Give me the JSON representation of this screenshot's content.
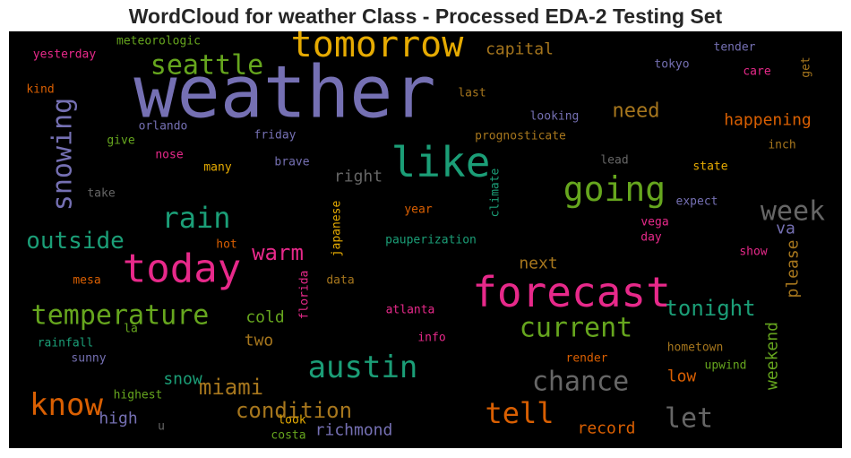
{
  "chart_data": {
    "type": "wordcloud",
    "title": "WordCloud for weather Class - Processed EDA-2 Testing Set",
    "words": [
      {
        "text": "weather",
        "color": "#7570b3"
      },
      {
        "text": "tomorrow",
        "color": "#e6ab02"
      },
      {
        "text": "seattle",
        "color": "#66a61e"
      },
      {
        "text": "capital",
        "color": "#a6761d"
      },
      {
        "text": "meteorologic",
        "color": "#66a61e"
      },
      {
        "text": "yesterday",
        "color": "#e7298a"
      },
      {
        "text": "kind",
        "color": "#d95f02"
      },
      {
        "text": "snowing",
        "color": "#7570b3"
      },
      {
        "text": "like",
        "color": "#1b9e77"
      },
      {
        "text": "going",
        "color": "#66a61e"
      },
      {
        "text": "need",
        "color": "#a6761d"
      },
      {
        "text": "happening",
        "color": "#d95f02"
      },
      {
        "text": "last",
        "color": "#a6761d"
      },
      {
        "text": "looking",
        "color": "#7570b3"
      },
      {
        "text": "tokyo",
        "color": "#7570b3"
      },
      {
        "text": "tender",
        "color": "#7570b3"
      },
      {
        "text": "care",
        "color": "#e7298a"
      },
      {
        "text": "get",
        "color": "#a6761d"
      },
      {
        "text": "prognosticate",
        "color": "#a6761d"
      },
      {
        "text": "orlando",
        "color": "#7570b3"
      },
      {
        "text": "give",
        "color": "#66a61e"
      },
      {
        "text": "friday",
        "color": "#7570b3"
      },
      {
        "text": "nose",
        "color": "#e7298a"
      },
      {
        "text": "many",
        "color": "#e6ab02"
      },
      {
        "text": "brave",
        "color": "#7570b3"
      },
      {
        "text": "right",
        "color": "#666666"
      },
      {
        "text": "climate",
        "color": "#1b9e77"
      },
      {
        "text": "lead",
        "color": "#666666"
      },
      {
        "text": "inch",
        "color": "#a6761d"
      },
      {
        "text": "state",
        "color": "#e6ab02"
      },
      {
        "text": "take",
        "color": "#666666"
      },
      {
        "text": "rain",
        "color": "#1b9e77"
      },
      {
        "text": "week",
        "color": "#666666"
      },
      {
        "text": "expect",
        "color": "#7570b3"
      },
      {
        "text": "japanese",
        "color": "#e6ab02"
      },
      {
        "text": "year",
        "color": "#d95f02"
      },
      {
        "text": "outside",
        "color": "#1b9e77"
      },
      {
        "text": "today",
        "color": "#e7298a"
      },
      {
        "text": "warm",
        "color": "#e7298a"
      },
      {
        "text": "va",
        "color": "#7570b3"
      },
      {
        "text": "vega",
        "color": "#e7298a"
      },
      {
        "text": "day",
        "color": "#e7298a"
      },
      {
        "text": "pauperization",
        "color": "#1b9e77"
      },
      {
        "text": "hot",
        "color": "#d95f02"
      },
      {
        "text": "show",
        "color": "#e7298a"
      },
      {
        "text": "please",
        "color": "#a6761d"
      },
      {
        "text": "next",
        "color": "#a6761d"
      },
      {
        "text": "forecast",
        "color": "#e7298a"
      },
      {
        "text": "mesa",
        "color": "#d95f02"
      },
      {
        "text": "florida",
        "color": "#e7298a"
      },
      {
        "text": "data",
        "color": "#a6761d"
      },
      {
        "text": "temperature",
        "color": "#66a61e"
      },
      {
        "text": "cold",
        "color": "#66a61e"
      },
      {
        "text": "atlanta",
        "color": "#e7298a"
      },
      {
        "text": "tonight",
        "color": "#1b9e77"
      },
      {
        "text": "current",
        "color": "#66a61e"
      },
      {
        "text": "weekend",
        "color": "#66a61e"
      },
      {
        "text": "rainfall",
        "color": "#1b9e77"
      },
      {
        "text": "la",
        "color": "#66a61e"
      },
      {
        "text": "two",
        "color": "#a6761d"
      },
      {
        "text": "info",
        "color": "#e7298a"
      },
      {
        "text": "hometown",
        "color": "#a6761d"
      },
      {
        "text": "sunny",
        "color": "#7570b3"
      },
      {
        "text": "austin",
        "color": "#1b9e77"
      },
      {
        "text": "render",
        "color": "#d95f02"
      },
      {
        "text": "upwind",
        "color": "#66a61e"
      },
      {
        "text": "snow",
        "color": "#1b9e77"
      },
      {
        "text": "miami",
        "color": "#a6761d"
      },
      {
        "text": "chance",
        "color": "#666666"
      },
      {
        "text": "low",
        "color": "#d95f02"
      },
      {
        "text": "know",
        "color": "#d95f02"
      },
      {
        "text": "highest",
        "color": "#66a61e"
      },
      {
        "text": "condition",
        "color": "#a6761d"
      },
      {
        "text": "tell",
        "color": "#d95f02"
      },
      {
        "text": "let",
        "color": "#666666"
      },
      {
        "text": "high",
        "color": "#7570b3"
      },
      {
        "text": "look",
        "color": "#e6ab02"
      },
      {
        "text": "u",
        "color": "#666666"
      },
      {
        "text": "richmond",
        "color": "#7570b3"
      },
      {
        "text": "record",
        "color": "#d95f02"
      },
      {
        "text": "costa",
        "color": "#66a61e"
      }
    ]
  }
}
